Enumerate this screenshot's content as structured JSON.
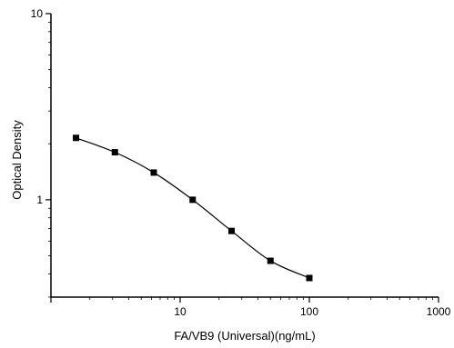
{
  "chart_data": {
    "type": "line",
    "title": "",
    "xlabel": "FA/VB9 (Universal)(ng/mL)",
    "ylabel": "Optical Density",
    "xscale": "log",
    "yscale": "log",
    "xlim": [
      1,
      1000
    ],
    "ylim": [
      0.3,
      10
    ],
    "x_ticks": [
      "10",
      "100",
      "1000"
    ],
    "y_ticks": [
      "10",
      "1"
    ],
    "grid": false,
    "marker": "square",
    "series": [
      {
        "x": [
          1.5625,
          3.125,
          6.25,
          12.5,
          25,
          50,
          100
        ],
        "y": [
          2.15,
          1.8,
          1.4,
          1.0,
          0.68,
          0.47,
          0.38
        ]
      }
    ],
    "colors": {
      "line": "#000000",
      "marker": "#000000",
      "axis": "#000000"
    }
  }
}
